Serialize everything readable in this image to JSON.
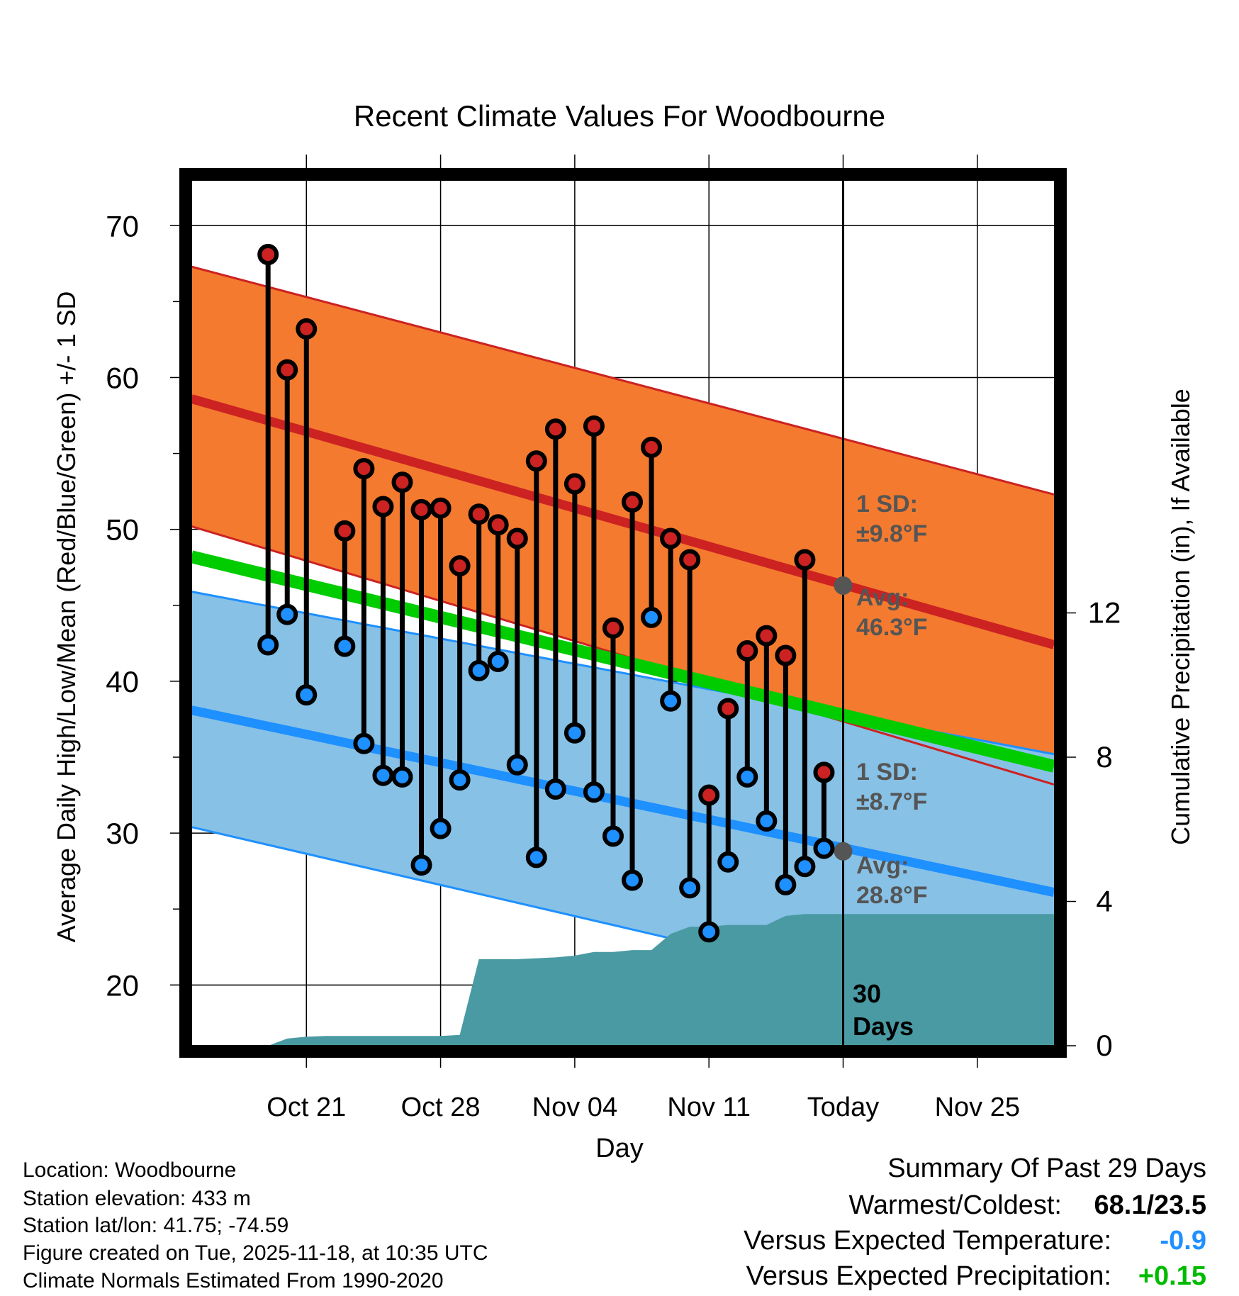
{
  "chart_data": {
    "type": "line",
    "title": "Recent Climate Values For Woodbourne",
    "xlabel": "Day",
    "ylabel_left": "Average Daily High/Low/Mean (Red/Blue/Green) +/- 1 SD",
    "ylabel_right": "Cumulative Precipitation (in), If Available",
    "x_ticks": [
      "Oct 21",
      "Oct 28",
      "Nov 04",
      "Nov 11",
      "Today",
      "Nov 25"
    ],
    "x_range_days": [
      -34,
      11
    ],
    "x_tick_days": [
      -28,
      -21,
      -14,
      -7,
      0,
      7
    ],
    "ylim_left": [
      16,
      73
    ],
    "y_ticks_left": [
      20,
      30,
      40,
      50,
      60,
      70
    ],
    "ylim_right": [
      0,
      24
    ],
    "y_ticks_right": [
      0,
      4,
      8,
      12
    ],
    "normals": {
      "high_mean_start": 58.6,
      "high_mean_end": 42.4,
      "high_upper_start": 67.3,
      "high_upper_end": 52.3,
      "high_lower_start": 50.2,
      "high_lower_end": 33.2,
      "low_mean_start": 38.1,
      "low_mean_end": 26.1,
      "low_upper_start": 45.9,
      "low_upper_end": 35.2,
      "low_lower_start": 30.4,
      "low_lower_end": 17.2,
      "mean_start": 48.2,
      "mean_end": 34.4
    },
    "annotations": {
      "high_sd_label": "1 SD:",
      "high_sd_value": "±9.8°F",
      "high_avg_label": "Avg:",
      "high_avg_value": "46.3°F",
      "low_sd_label": "1 SD:",
      "low_sd_value": "±8.7°F",
      "low_avg_label": "Avg:",
      "low_avg_value": "28.8°F",
      "days_label_1": "30",
      "days_label_2": "Days",
      "today_high_avg": 46.3,
      "today_low_avg": 28.8
    },
    "series": [
      {
        "name": "Daily High",
        "days": [
          -30,
          -29,
          -28,
          -26,
          -25,
          -24,
          -23,
          -22,
          -21,
          -20,
          -19,
          -18,
          -17,
          -16,
          -15,
          -14,
          -13,
          -12,
          -11,
          -10,
          -9,
          -8,
          -7,
          -6,
          -5,
          -4,
          -3,
          -2
        ],
        "values": [
          68.1,
          60.5,
          63.2,
          49.9,
          54.0,
          51.5,
          53.1,
          51.3,
          51.4,
          47.6,
          51.0,
          50.3,
          49.4,
          54.5,
          56.6,
          53.0,
          56.8,
          43.5,
          51.8,
          55.4,
          49.4,
          48.0,
          32.5,
          38.2,
          42.0,
          43.0,
          41.7,
          48.0
        ]
      },
      {
        "name": "Daily Low",
        "days": [
          -30,
          -29,
          -28,
          -26,
          -25,
          -24,
          -23,
          -22,
          -21,
          -20,
          -19,
          -18,
          -17,
          -16,
          -15,
          -14,
          -13,
          -12,
          -11,
          -10,
          -9,
          -8,
          -7,
          -6,
          -5,
          -4,
          -3,
          -2
        ],
        "values": [
          42.4,
          44.4,
          39.1,
          42.3,
          35.9,
          33.8,
          33.7,
          27.9,
          30.3,
          33.5,
          40.7,
          41.3,
          34.5,
          28.4,
          32.9,
          36.6,
          32.7,
          29.8,
          26.9,
          44.2,
          38.7,
          26.4,
          23.5,
          28.1,
          33.7,
          30.8,
          26.6,
          27.8
        ]
      },
      {
        "name": "Partial Day (Today-1)",
        "days": [
          -1
        ],
        "high": [
          34.0
        ],
        "low": [
          29.0
        ]
      },
      {
        "name": "Cumulative Precipitation (in)",
        "days": [
          -31,
          -30,
          -29,
          -28,
          -27,
          -26,
          -21,
          -20,
          -19,
          -18,
          -17,
          -15,
          -14,
          -13,
          -12,
          -11,
          -10,
          -9,
          -8,
          -7,
          -6,
          -5,
          -4,
          -3,
          -2,
          -1,
          0,
          11
        ],
        "values": [
          0,
          0,
          0.2,
          0.25,
          0.27,
          0.27,
          0.27,
          0.3,
          2.4,
          2.4,
          2.4,
          2.45,
          2.5,
          2.6,
          2.6,
          2.65,
          2.65,
          3.1,
          3.3,
          3.3,
          3.35,
          3.35,
          3.35,
          3.6,
          3.65,
          3.65,
          3.65,
          3.65
        ]
      }
    ],
    "legend": "none"
  },
  "footer": {
    "location": "Location: Woodbourne",
    "elevation": "Station elevation: 433 m",
    "latlon": "Station lat/lon: 41.75; -74.59",
    "created": "Figure created on Tue, 2025-11-18, at 10:35 UTC",
    "normals": "Climate Normals Estimated From 1990-2020"
  },
  "summary": {
    "title": "Summary Of Past 29 Days",
    "warm_cold_label": "Warmest/Coldest:",
    "warm_cold_value": "68.1/23.5",
    "temp_label": "Versus Expected Temperature:",
    "temp_value": "-0.9",
    "precip_label": "Versus Expected Precipitation:",
    "precip_value": "+0.15"
  },
  "colors": {
    "high_band": "#f47a2f",
    "high_line": "#cc2222",
    "low_band": "#87c1e6",
    "low_line": "#1e90ff",
    "mean_line": "#00cc00",
    "precip_fill": "#4a9aa3",
    "high_marker": "#cc2222",
    "low_marker": "#1e90ff",
    "today_marker": "#555555",
    "annotation_text": "#555555",
    "temp_delta": "#1e90ff",
    "precip_delta": "#00cc00"
  }
}
